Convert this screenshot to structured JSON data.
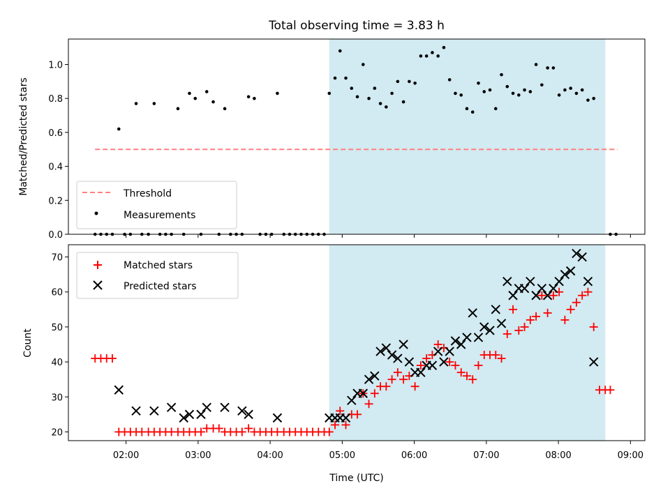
{
  "chart_data": {
    "title": "Total observing time = 3.83 h",
    "xlabel": "Time (UTC)",
    "x_unit": "hours UTC",
    "xlim": [
      1.2,
      9.2
    ],
    "xticks": [
      {
        "value": 2,
        "label": "02:00"
      },
      {
        "value": 3,
        "label": "03:00"
      },
      {
        "value": 4,
        "label": "04:00"
      },
      {
        "value": 5,
        "label": "05:00"
      },
      {
        "value": 6,
        "label": "06:00"
      },
      {
        "value": 7,
        "label": "07:00"
      },
      {
        "value": 8,
        "label": "08:00"
      },
      {
        "value": 9,
        "label": "09:00"
      }
    ],
    "shaded_region": {
      "x_start": 4.82,
      "x_end": 8.65,
      "color": "#add8e6"
    },
    "panels": [
      {
        "id": "ratio",
        "type": "scatter",
        "ylabel": "Matched/Predicted stars",
        "ylim": [
          0,
          1.15
        ],
        "yticks": [
          0.0,
          0.2,
          0.4,
          0.6,
          0.8,
          1.0
        ],
        "ytick_labels": [
          "0.0",
          "0.2",
          "0.4",
          "0.6",
          "0.8",
          "1.0"
        ],
        "legend": {
          "placement": "lower-left",
          "entries": [
            "Threshold",
            "Measurements"
          ]
        },
        "threshold": {
          "name": "Threshold",
          "y": 0.5,
          "x_range": [
            1.57,
            8.82
          ],
          "color": "#ff7f7f",
          "style": "dashed"
        },
        "measurements": {
          "name": "Measurements",
          "color": "#000000",
          "points": [
            [
              1.57,
              0
            ],
            [
              1.65,
              0
            ],
            [
              1.73,
              0
            ],
            [
              1.81,
              0
            ],
            [
              1.9,
              0.62
            ],
            [
              1.98,
              0
            ],
            [
              2.06,
              0
            ],
            [
              2.14,
              0.77
            ],
            [
              2.22,
              0
            ],
            [
              2.31,
              0
            ],
            [
              2.39,
              0.77
            ],
            [
              2.47,
              0
            ],
            [
              2.55,
              0
            ],
            [
              2.63,
              0
            ],
            [
              2.72,
              0.74
            ],
            [
              2.8,
              0
            ],
            [
              2.88,
              0.83
            ],
            [
              2.96,
              0.8
            ],
            [
              3.04,
              0
            ],
            [
              3.12,
              0.84
            ],
            [
              3.21,
              0.78
            ],
            [
              3.29,
              0
            ],
            [
              3.37,
              0.74
            ],
            [
              3.45,
              0
            ],
            [
              3.53,
              0
            ],
            [
              3.61,
              0
            ],
            [
              3.7,
              0.81
            ],
            [
              3.78,
              0.8
            ],
            [
              3.86,
              0
            ],
            [
              3.94,
              0
            ],
            [
              4.02,
              0
            ],
            [
              4.1,
              0.83
            ],
            [
              4.19,
              0
            ],
            [
              4.27,
              0
            ],
            [
              4.35,
              0
            ],
            [
              4.43,
              0
            ],
            [
              4.51,
              0
            ],
            [
              4.59,
              0
            ],
            [
              4.67,
              0
            ],
            [
              4.75,
              0
            ],
            [
              4.82,
              0.83
            ],
            [
              4.9,
              0.92
            ],
            [
              4.97,
              1.08
            ],
            [
              5.05,
              0.92
            ],
            [
              5.13,
              0.86
            ],
            [
              5.21,
              0.81
            ],
            [
              5.29,
              1.0
            ],
            [
              5.37,
              0.8
            ],
            [
              5.45,
              0.86
            ],
            [
              5.53,
              0.77
            ],
            [
              5.61,
              0.75
            ],
            [
              5.69,
              0.83
            ],
            [
              5.77,
              0.9
            ],
            [
              5.85,
              0.78
            ],
            [
              5.93,
              0.9
            ],
            [
              6.01,
              0.89
            ],
            [
              6.09,
              1.05
            ],
            [
              6.17,
              1.05
            ],
            [
              6.25,
              1.07
            ],
            [
              6.33,
              1.05
            ],
            [
              6.41,
              1.1
            ],
            [
              6.49,
              0.91
            ],
            [
              6.57,
              0.83
            ],
            [
              6.65,
              0.82
            ],
            [
              6.73,
              0.74
            ],
            [
              6.81,
              0.72
            ],
            [
              6.89,
              0.89
            ],
            [
              6.97,
              0.84
            ],
            [
              7.05,
              0.85
            ],
            [
              7.13,
              0.74
            ],
            [
              7.21,
              0.94
            ],
            [
              7.29,
              0.87
            ],
            [
              7.37,
              0.83
            ],
            [
              7.45,
              0.82
            ],
            [
              7.53,
              0.85
            ],
            [
              7.61,
              0.84
            ],
            [
              7.69,
              1.0
            ],
            [
              7.77,
              0.88
            ],
            [
              7.85,
              0.98
            ],
            [
              7.93,
              0.98
            ],
            [
              8.01,
              0.82
            ],
            [
              8.09,
              0.85
            ],
            [
              8.17,
              0.86
            ],
            [
              8.25,
              0.83
            ],
            [
              8.33,
              0.85
            ],
            [
              8.41,
              0.79
            ],
            [
              8.49,
              0.8
            ],
            [
              8.72,
              0
            ],
            [
              8.8,
              0
            ]
          ]
        }
      },
      {
        "id": "counts",
        "type": "scatter",
        "ylabel": "Count",
        "ylim": [
          17.5,
          73.5
        ],
        "yticks": [
          20,
          30,
          40,
          50,
          60,
          70
        ],
        "legend": {
          "placement": "upper-left",
          "entries": [
            "Matched stars",
            "Predicted stars"
          ]
        },
        "series": [
          {
            "name": "Matched stars",
            "marker": "plus",
            "color": "#ff0000",
            "points": [
              [
                1.57,
                41
              ],
              [
                1.65,
                41
              ],
              [
                1.73,
                41
              ],
              [
                1.81,
                41
              ],
              [
                1.9,
                20
              ],
              [
                1.98,
                20
              ],
              [
                2.06,
                20
              ],
              [
                2.14,
                20
              ],
              [
                2.22,
                20
              ],
              [
                2.31,
                20
              ],
              [
                2.39,
                20
              ],
              [
                2.47,
                20
              ],
              [
                2.55,
                20
              ],
              [
                2.63,
                20
              ],
              [
                2.72,
                20
              ],
              [
                2.8,
                20
              ],
              [
                2.88,
                20
              ],
              [
                2.96,
                20
              ],
              [
                3.04,
                20
              ],
              [
                3.12,
                21
              ],
              [
                3.21,
                21
              ],
              [
                3.29,
                21
              ],
              [
                3.37,
                20
              ],
              [
                3.45,
                20
              ],
              [
                3.53,
                20
              ],
              [
                3.61,
                20
              ],
              [
                3.7,
                21
              ],
              [
                3.78,
                20
              ],
              [
                3.86,
                20
              ],
              [
                3.94,
                20
              ],
              [
                4.02,
                20
              ],
              [
                4.1,
                20
              ],
              [
                4.19,
                20
              ],
              [
                4.27,
                20
              ],
              [
                4.35,
                20
              ],
              [
                4.43,
                20
              ],
              [
                4.51,
                20
              ],
              [
                4.59,
                20
              ],
              [
                4.67,
                20
              ],
              [
                4.75,
                20
              ],
              [
                4.82,
                20
              ],
              [
                4.9,
                22
              ],
              [
                4.97,
                26
              ],
              [
                5.05,
                22
              ],
              [
                5.13,
                25
              ],
              [
                5.21,
                25
              ],
              [
                5.29,
                31
              ],
              [
                5.37,
                28
              ],
              [
                5.45,
                31
              ],
              [
                5.53,
                33
              ],
              [
                5.61,
                33
              ],
              [
                5.69,
                35
              ],
              [
                5.77,
                37
              ],
              [
                5.85,
                35
              ],
              [
                5.93,
                36
              ],
              [
                6.01,
                33
              ],
              [
                6.09,
                39
              ],
              [
                6.17,
                41
              ],
              [
                6.25,
                42
              ],
              [
                6.33,
                45
              ],
              [
                6.41,
                44
              ],
              [
                6.49,
                40
              ],
              [
                6.57,
                39
              ],
              [
                6.65,
                37
              ],
              [
                6.73,
                36
              ],
              [
                6.81,
                35
              ],
              [
                6.89,
                39
              ],
              [
                6.97,
                42
              ],
              [
                7.05,
                42
              ],
              [
                7.13,
                42
              ],
              [
                7.21,
                41
              ],
              [
                7.29,
                48
              ],
              [
                7.37,
                55
              ],
              [
                7.45,
                49
              ],
              [
                7.53,
                50
              ],
              [
                7.61,
                52
              ],
              [
                7.69,
                53
              ],
              [
                7.77,
                59
              ],
              [
                7.85,
                54
              ],
              [
                7.93,
                59
              ],
              [
                8.01,
                60
              ],
              [
                8.09,
                52
              ],
              [
                8.17,
                55
              ],
              [
                8.25,
                57
              ],
              [
                8.33,
                59
              ],
              [
                8.41,
                60
              ],
              [
                8.49,
                50
              ],
              [
                8.57,
                32
              ],
              [
                8.65,
                32
              ],
              [
                8.72,
                32
              ]
            ]
          },
          {
            "name": "Predicted stars",
            "marker": "x",
            "color": "#000000",
            "points": [
              [
                1.9,
                32
              ],
              [
                2.14,
                26
              ],
              [
                2.39,
                26
              ],
              [
                2.63,
                27
              ],
              [
                2.8,
                24
              ],
              [
                2.88,
                25
              ],
              [
                3.04,
                25
              ],
              [
                3.12,
                27
              ],
              [
                3.37,
                27
              ],
              [
                3.61,
                26
              ],
              [
                3.7,
                25
              ],
              [
                4.1,
                24
              ],
              [
                4.82,
                24
              ],
              [
                4.9,
                24
              ],
              [
                4.97,
                24
              ],
              [
                5.05,
                24
              ],
              [
                5.13,
                29
              ],
              [
                5.21,
                31
              ],
              [
                5.29,
                31
              ],
              [
                5.37,
                35
              ],
              [
                5.45,
                36
              ],
              [
                5.53,
                43
              ],
              [
                5.61,
                44
              ],
              [
                5.69,
                42
              ],
              [
                5.77,
                41
              ],
              [
                5.85,
                45
              ],
              [
                5.93,
                40
              ],
              [
                6.01,
                37
              ],
              [
                6.09,
                37
              ],
              [
                6.17,
                39
              ],
              [
                6.25,
                39
              ],
              [
                6.33,
                43
              ],
              [
                6.41,
                40
              ],
              [
                6.49,
                43
              ],
              [
                6.57,
                46
              ],
              [
                6.65,
                45
              ],
              [
                6.73,
                47
              ],
              [
                6.81,
                54
              ],
              [
                6.89,
                47
              ],
              [
                6.97,
                50
              ],
              [
                7.05,
                49
              ],
              [
                7.13,
                55
              ],
              [
                7.21,
                51
              ],
              [
                7.29,
                63
              ],
              [
                7.37,
                59
              ],
              [
                7.45,
                61
              ],
              [
                7.53,
                61
              ],
              [
                7.61,
                63
              ],
              [
                7.69,
                59
              ],
              [
                7.77,
                61
              ],
              [
                7.85,
                59
              ],
              [
                7.93,
                61
              ],
              [
                8.01,
                63
              ],
              [
                8.09,
                65
              ],
              [
                8.17,
                66
              ],
              [
                8.25,
                71
              ],
              [
                8.33,
                70
              ],
              [
                8.41,
                63
              ],
              [
                8.49,
                40
              ]
            ]
          }
        ]
      }
    ]
  }
}
